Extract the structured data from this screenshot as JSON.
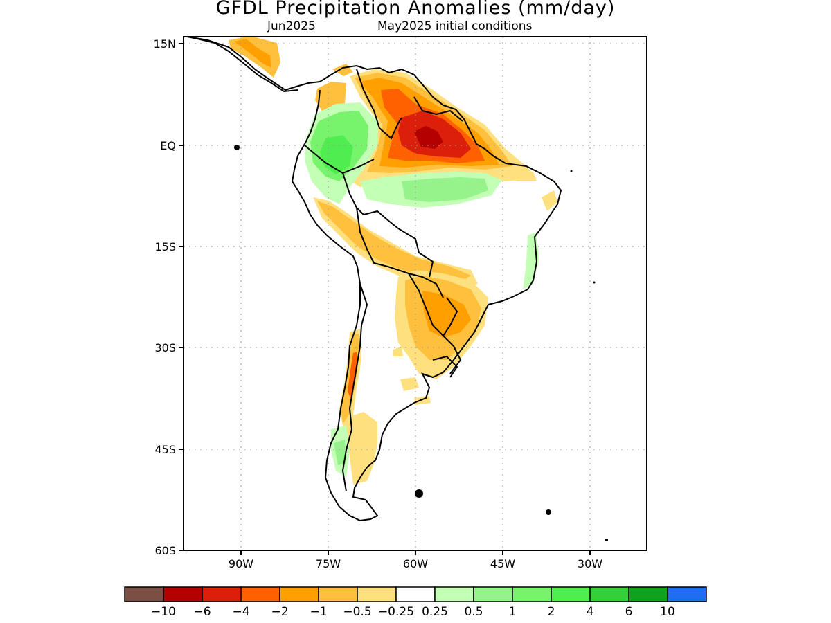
{
  "header": {
    "title": "GFDL Precipitation Anomalies (mm/day)",
    "valid_month": "Jun2025",
    "init_conditions": "May2025 initial conditions"
  },
  "map": {
    "region": "South America",
    "lon_range": [
      -100,
      -20
    ],
    "lat_range": [
      -60,
      15
    ],
    "lat_ticks": [
      {
        "value": 15,
        "label": "15N"
      },
      {
        "value": 0,
        "label": "EQ"
      },
      {
        "value": -15,
        "label": "15S"
      },
      {
        "value": -30,
        "label": "30S"
      },
      {
        "value": -45,
        "label": "45S"
      },
      {
        "value": -60,
        "label": "60S"
      }
    ],
    "lon_ticks": [
      {
        "value": -90,
        "label": "90W"
      },
      {
        "value": -75,
        "label": "75W"
      },
      {
        "value": -60,
        "label": "60W"
      },
      {
        "value": -45,
        "label": "45W"
      },
      {
        "value": -30,
        "label": "30W"
      }
    ],
    "grid": "dotted"
  },
  "colorbar": {
    "colors": [
      "#7b4f43",
      "#b50000",
      "#dc1f0a",
      "#ff6000",
      "#ff9f00",
      "#ffc03d",
      "#ffe07e",
      "#ffffff",
      "#c4ffb6",
      "#96f38b",
      "#78f46c",
      "#4fed4f",
      "#35cf3a",
      "#10a21c",
      "#1f6df1"
    ],
    "labels": [
      "−10",
      "−6",
      "−4",
      "−2",
      "−1",
      "−0.5",
      "−0.25",
      "0.25",
      "0.5",
      "1",
      "2",
      "4",
      "6",
      "10"
    ]
  }
}
